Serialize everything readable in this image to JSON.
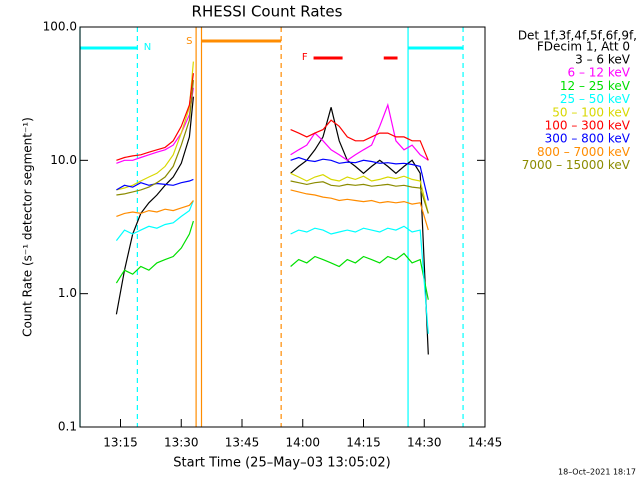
{
  "chart_data": {
    "type": "line",
    "title": "RHESSI Count Rates",
    "xlabel": "Start Time (25–May–03 13:05:02)",
    "ylabel": "Count Rate (s⁻¹ detector segment⁻¹)",
    "legend_title": [
      "Det 1f,3f,4f,5f,6f,9f,",
      "FDecim 1, Att 0"
    ],
    "legend": "outside-right",
    "footer": "18–Oct–2021 18:17",
    "log_y": true,
    "xlim": [
      "13:05",
      "14:45"
    ],
    "xticks": [
      "13:15",
      "13:30",
      "13:45",
      "14:00",
      "14:15",
      "14:30",
      "14:45"
    ],
    "ylim": [
      0.1,
      100
    ],
    "yticks": [
      0.1,
      {
        "value": 1,
        "label": "1.0"
      },
      {
        "value": 10,
        "label": "10.0"
      },
      {
        "value": 100,
        "label": "100.0"
      }
    ],
    "x": [
      "13:14",
      "13:16",
      "13:18",
      "13:20",
      "13:22",
      "13:24",
      "13:26",
      "13:28",
      "13:30",
      "13:32",
      "13:33",
      "13:45",
      "13:57",
      "13:59",
      "14:01",
      "14:03",
      "14:05",
      "14:07",
      "14:09",
      "14:11",
      "14:13",
      "14:15",
      "14:17",
      "14:19",
      "14:21",
      "14:23",
      "14:25",
      "14:27",
      "14:29",
      "14:31"
    ],
    "series": [
      {
        "name": "3 – 6 keV",
        "color": "#000000",
        "values": [
          0.7,
          1.5,
          2.8,
          4.0,
          4.8,
          5.5,
          6.5,
          7.5,
          9.5,
          15,
          30,
          null,
          8,
          9,
          10,
          12,
          15,
          25,
          14,
          10,
          9,
          8,
          9,
          10,
          9,
          8,
          9,
          10,
          8,
          0.35
        ]
      },
      {
        "name": "6 – 12 keV",
        "color": "#ff00ff",
        "values": [
          9.5,
          10,
          10,
          10.5,
          11,
          11.5,
          12,
          13,
          16,
          22,
          35,
          null,
          11,
          12,
          13,
          16,
          14,
          12,
          11,
          10,
          11,
          12,
          13,
          18,
          26,
          14,
          12,
          13,
          11,
          10
        ]
      },
      {
        "name": "12 – 25 keV",
        "color": "#00e000",
        "values": [
          1.2,
          1.5,
          1.4,
          1.6,
          1.5,
          1.7,
          1.8,
          1.9,
          2.2,
          2.8,
          3.5,
          null,
          1.6,
          1.8,
          1.7,
          1.9,
          1.8,
          1.7,
          1.6,
          1.8,
          1.7,
          1.9,
          1.8,
          1.7,
          1.9,
          1.8,
          2.0,
          1.7,
          1.8,
          0.9
        ]
      },
      {
        "name": "25 – 50 keV",
        "color": "#00ffff",
        "values": [
          2.5,
          3.0,
          2.8,
          3.0,
          3.2,
          3.1,
          3.3,
          3.4,
          3.8,
          4.2,
          5,
          null,
          2.8,
          3.0,
          2.9,
          3.1,
          3.0,
          2.8,
          2.9,
          3.0,
          2.9,
          3.1,
          3.0,
          2.9,
          3.1,
          3.0,
          3.2,
          2.9,
          3.0,
          0.5
        ]
      },
      {
        "name": "50 – 100 keV",
        "color": "#d8d800",
        "values": [
          6,
          6.2,
          6.5,
          7,
          7.5,
          8,
          9,
          11,
          16,
          25,
          55,
          null,
          8,
          7.5,
          7,
          7.5,
          7.8,
          7.2,
          7,
          7.5,
          7.2,
          7.6,
          7,
          7.2,
          7.5,
          7.3,
          7.6,
          7.2,
          7,
          4
        ]
      },
      {
        "name": "100 – 300 keV",
        "color": "#ff0000",
        "values": [
          10,
          10.5,
          10.8,
          11,
          11.5,
          12,
          12.5,
          14,
          18,
          26,
          45,
          null,
          17,
          16,
          15,
          16,
          17,
          20,
          18,
          15,
          14,
          14,
          15,
          16,
          16,
          15,
          15,
          14,
          14,
          10
        ]
      },
      {
        "name": "300 – 800 keV",
        "color": "#0000ff",
        "values": [
          6,
          6.5,
          6.3,
          6.8,
          6.5,
          6.7,
          6.6,
          6.5,
          6.8,
          7,
          7.2,
          null,
          10,
          10.5,
          10,
          9.8,
          10.2,
          10,
          9.5,
          9.7,
          9.6,
          10,
          9.8,
          9.5,
          9.6,
          9.4,
          9.5,
          9.3,
          9,
          5
        ]
      },
      {
        "name": "800 – 7000 keV",
        "color": "#ff8c00",
        "values": [
          3.8,
          4,
          4.1,
          4,
          4.2,
          4.1,
          4.3,
          4.2,
          4.4,
          4.6,
          5,
          null,
          6,
          5.8,
          5.6,
          5.5,
          5.3,
          5.2,
          5,
          5.1,
          5,
          4.9,
          5,
          4.8,
          4.9,
          4.8,
          4.9,
          4.7,
          4.8,
          3
        ]
      },
      {
        "name": "7000 – 15000 keV",
        "color": "#8b8b00",
        "values": [
          5.5,
          5.6,
          5.8,
          6,
          6.3,
          6.8,
          7.5,
          9,
          13,
          20,
          40,
          null,
          7,
          6.8,
          6.6,
          6.8,
          6.9,
          6.5,
          6.4,
          6.6,
          6.5,
          6.6,
          6.4,
          6.5,
          6.6,
          6.4,
          6.5,
          6.3,
          6.2,
          4
        ]
      }
    ],
    "vlines": [
      {
        "x": "13:05",
        "color": "#00ffff",
        "dashed": false
      },
      {
        "x": "13:19:10",
        "color": "#00ffff",
        "dashed": true
      },
      {
        "x": "13:33:40",
        "color": "#ff8c00",
        "dashed": false
      },
      {
        "x": "13:35",
        "color": "#ff8c00",
        "dashed": false
      },
      {
        "x": "13:54:40",
        "color": "#ff8c00",
        "dashed": true
      },
      {
        "x": "14:26",
        "color": "#00ffff",
        "dashed": false
      },
      {
        "x": "14:39:35",
        "color": "#00ffff",
        "dashed": true
      }
    ],
    "flag_bars": [
      {
        "start": "13:05",
        "end": "13:19:10",
        "color": "#00ffff"
      },
      {
        "start": "13:35",
        "end": "13:54:40",
        "color": "#ff8c00"
      },
      {
        "start": "14:02:40",
        "end": "14:09:50",
        "color": "#ff0000"
      },
      {
        "start": "14:20",
        "end": "14:23:24",
        "color": "#ff0000"
      },
      {
        "start": "14:26",
        "end": "14:39:35",
        "color": "#00ffff"
      }
    ],
    "annotations": [
      {
        "text": "N",
        "x": "13:21:40",
        "color": "#00ffff"
      },
      {
        "text": "S",
        "x": "13:32",
        "color": "#ff8c00"
      },
      {
        "text": "F",
        "x": "14:00:30",
        "color": "#ff0000"
      }
    ]
  }
}
